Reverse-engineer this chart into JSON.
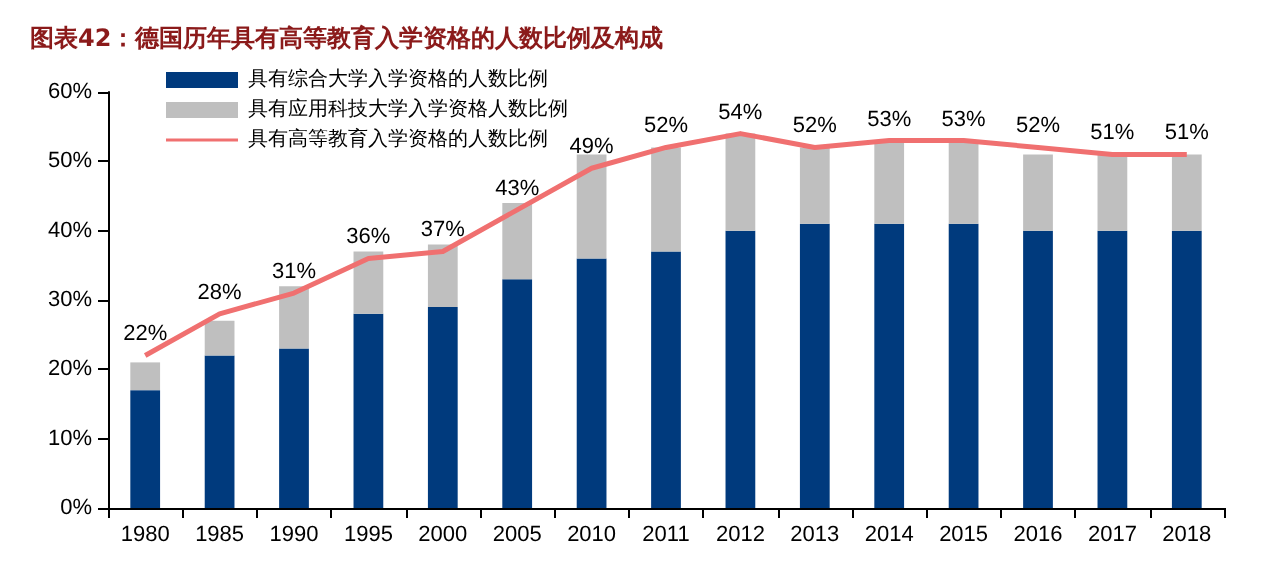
{
  "chart_data": {
    "type": "bar",
    "title": "图表42：德国历年具有高等教育入学资格的人数比例及构成",
    "stacked": true,
    "categories": [
      "1980",
      "1985",
      "1990",
      "1995",
      "2000",
      "2005",
      "2010",
      "2011",
      "2012",
      "2013",
      "2014",
      "2015",
      "2016",
      "2017",
      "2018"
    ],
    "series": [
      {
        "name": "具有综合大学入学资格的人数比例",
        "color": "#003a7d",
        "values": [
          17,
          22,
          23,
          28,
          29,
          33,
          36,
          37,
          40,
          41,
          41,
          41,
          40,
          40,
          40
        ]
      },
      {
        "name": "具有应用科技大学入学资格人数比例",
        "color": "#bfbfbf",
        "values": [
          4,
          5,
          9,
          9,
          9,
          11,
          15,
          15,
          14,
          11,
          12,
          12,
          11,
          11,
          11
        ]
      },
      {
        "name": "具有高等教育入学资格的人数比例",
        "type": "line",
        "color": "#f07070",
        "values": [
          22,
          28,
          31,
          36,
          37,
          43,
          49,
          52,
          54,
          52,
          53,
          53,
          52,
          51,
          51
        ],
        "value_labels": [
          "22%",
          "28%",
          "31%",
          "36%",
          "37%",
          "43%",
          "49%",
          "52%",
          "54%",
          "52%",
          "53%",
          "53%",
          "52%",
          "51%",
          "51%"
        ]
      }
    ],
    "ylim": [
      0,
      60
    ],
    "yticks": [
      {
        "value": 0,
        "label": "0%"
      },
      {
        "value": 10,
        "label": "10%"
      },
      {
        "value": 20,
        "label": "20%"
      },
      {
        "value": 30,
        "label": "30%"
      },
      {
        "value": 40,
        "label": "40%"
      },
      {
        "value": 50,
        "label": "50%"
      },
      {
        "value": 60,
        "label": "60%"
      }
    ],
    "grid": false,
    "legend": "top left",
    "marker": "none"
  }
}
